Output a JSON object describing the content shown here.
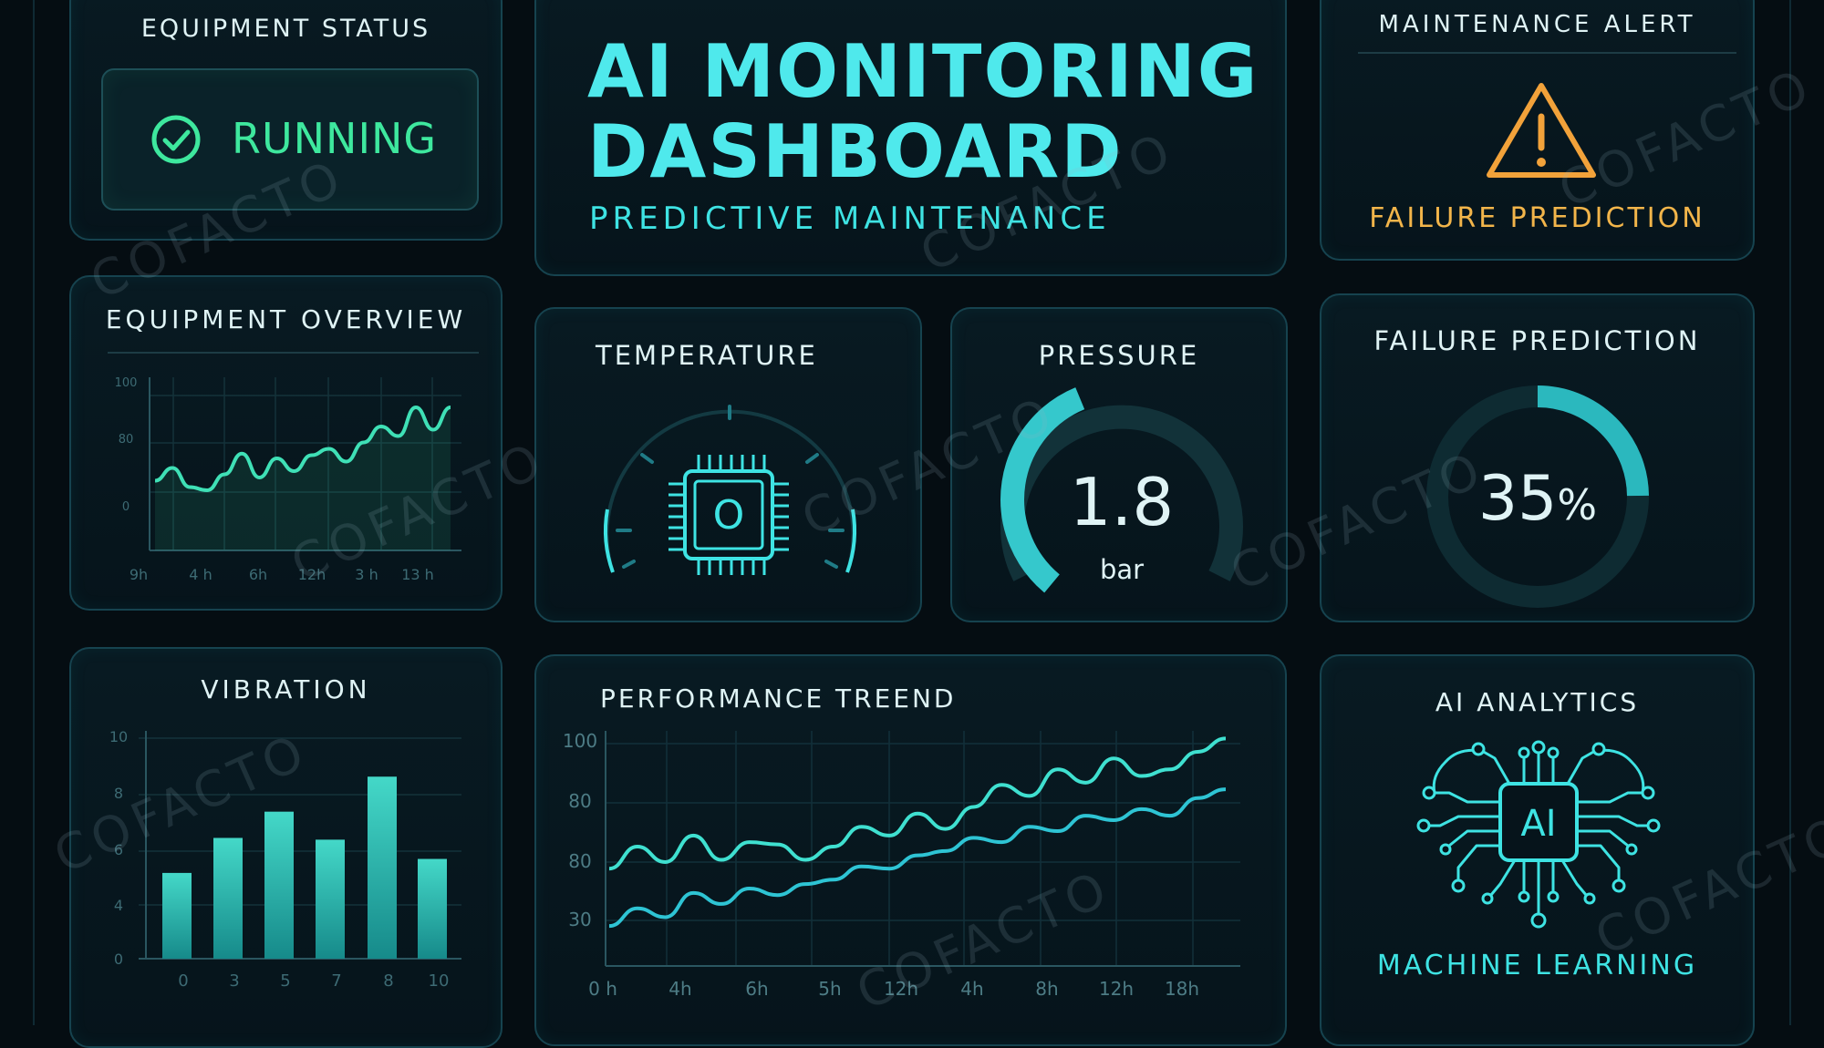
{
  "header": {
    "title_line1": "AI MONITORING",
    "title_line2": "DASHBOARD",
    "subtitle": "PREDICTIVE MAINTENANCE"
  },
  "equipment_status": {
    "title": "EQUIPMENT STATUS",
    "state": "RUNNING",
    "icon": "check-circle-icon"
  },
  "maintenance_alert": {
    "title": "MAINTENANCE ALERT",
    "label": "FAILURE PREDICTION",
    "icon": "warning-triangle-icon"
  },
  "temperature": {
    "title": "TEMPERATURE",
    "icon": "chip-icon",
    "gauge_label": "O"
  },
  "pressure": {
    "title": "PRESSURE",
    "value": "1.8",
    "unit": "bar",
    "fraction": 0.6
  },
  "failure_prediction": {
    "title": "FAILURE PREDICTION",
    "value": "35",
    "unit": "%",
    "fraction": 0.35
  },
  "ai_analytics": {
    "title": "AI ANALYTICS",
    "icon": "ai-brain-icon",
    "icon_label": "AI",
    "label": "MACHINE LEARNING"
  },
  "colors": {
    "accent": "#3ee3e3",
    "running": "#3ee89e",
    "warning": "#f2a23a",
    "panel_border": "#16434f"
  },
  "watermark": "COFACTO",
  "chart_data": [
    {
      "type": "line",
      "title": "EQUIPMENT OVERVIEW",
      "y_tick_labels": [
        "100",
        "80",
        "0"
      ],
      "x_tick_labels": [
        "9h",
        "4 h",
        "6h",
        "12h",
        "3 h",
        "13 h"
      ],
      "series": [
        {
          "values": [
            38,
            46,
            34,
            32,
            42,
            55,
            40,
            52,
            44,
            54,
            58,
            50,
            62,
            72,
            66,
            84,
            70,
            84
          ]
        }
      ]
    },
    {
      "type": "bar",
      "title": "VIBRATION",
      "y_tick_labels": [
        "10",
        "8",
        "6",
        "4",
        "0"
      ],
      "categories": [
        "0",
        "3",
        "5",
        "7",
        "8",
        "10"
      ],
      "values": [
        4.9,
        6.9,
        8.4,
        6.8,
        10.4,
        5.7
      ],
      "ylim": [
        0,
        12.6
      ]
    },
    {
      "type": "line",
      "title": "PERFORMANCE TREEND",
      "y_tick_labels": [
        "100",
        "80",
        "80",
        "30"
      ],
      "x_tick_labels": [
        "0 h",
        "4h",
        "6h",
        "5h",
        "12h",
        "4h",
        "8h",
        "12h",
        "18h"
      ],
      "ylim": [
        0,
        100
      ],
      "series": [
        {
          "values": [
            40,
            50,
            43,
            55,
            44,
            52,
            51,
            44,
            50,
            59,
            55,
            65,
            58,
            68,
            78,
            73,
            85,
            79,
            90,
            82,
            85,
            93,
            99
          ]
        },
        {
          "values": [
            14,
            22,
            18,
            29,
            24,
            31,
            28,
            33,
            35,
            41,
            40,
            46,
            48,
            54,
            52,
            59,
            57,
            64,
            62,
            67,
            64,
            72,
            76
          ]
        }
      ]
    }
  ]
}
